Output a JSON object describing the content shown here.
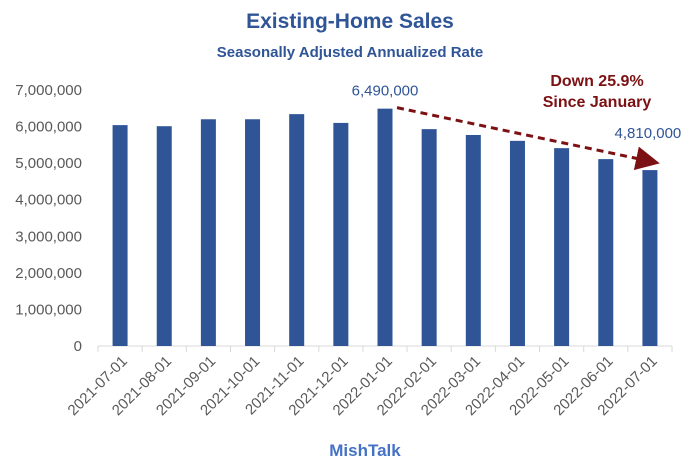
{
  "chart_data": {
    "type": "bar",
    "title": "Existing-Home Sales",
    "subtitle": "Seasonally Adjusted Annualized Rate",
    "xlabel": "MishTalk",
    "ylabel": "",
    "ylim": [
      0,
      7000000
    ],
    "yticks": [
      0,
      1000000,
      2000000,
      3000000,
      4000000,
      5000000,
      6000000,
      7000000
    ],
    "ytick_labels": [
      "0",
      "1,000,000",
      "2,000,000",
      "3,000,000",
      "4,000,000",
      "5,000,000",
      "6,000,000",
      "7,000,000"
    ],
    "grid": false,
    "categories": [
      "2021-07-01",
      "2021-08-01",
      "2021-09-01",
      "2021-10-01",
      "2021-11-01",
      "2021-12-01",
      "2022-01-01",
      "2022-02-01",
      "2022-03-01",
      "2022-04-01",
      "2022-05-01",
      "2022-06-01",
      "2022-07-01"
    ],
    "values": [
      6040000,
      6010000,
      6200000,
      6200000,
      6340000,
      6100000,
      6490000,
      5930000,
      5770000,
      5610000,
      5410000,
      5110000,
      4810000
    ],
    "bar_color": "#2f5597",
    "data_labels": [
      {
        "index": 6,
        "text": "6,490,000"
      },
      {
        "index": 12,
        "text": "4,810,000"
      }
    ],
    "annotation": {
      "line1": "Down 25.9%",
      "line2": "Since January",
      "color": "#7b1113",
      "from_index": 6,
      "to_index": 12
    }
  }
}
